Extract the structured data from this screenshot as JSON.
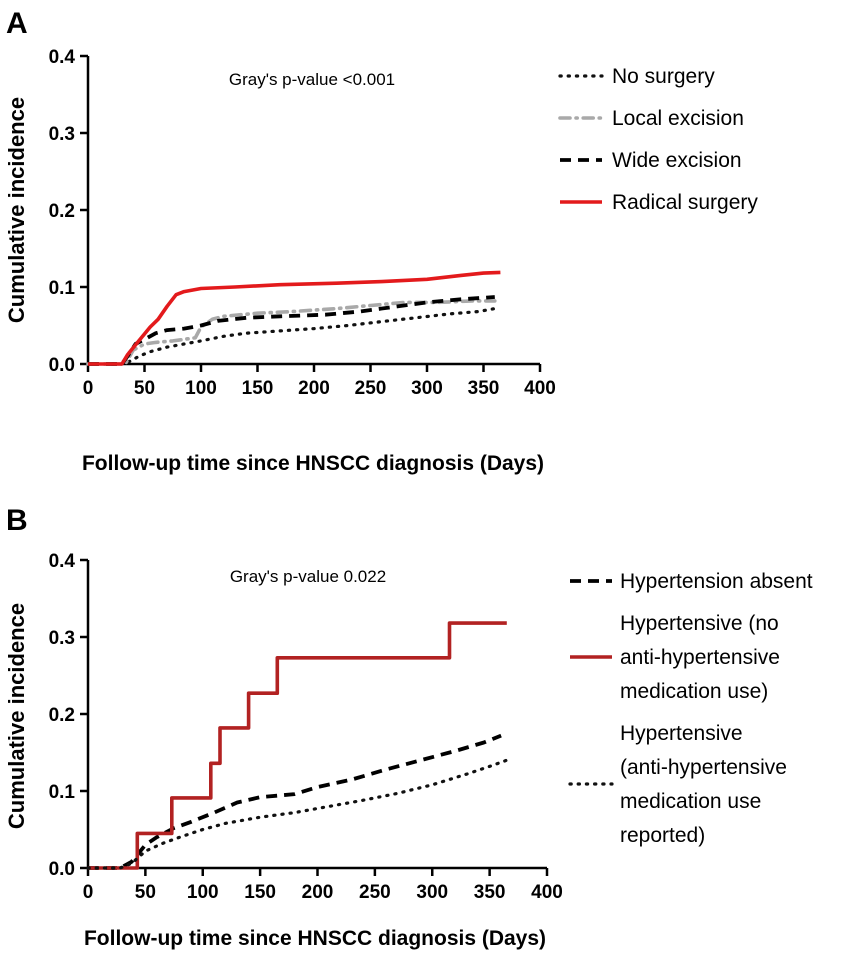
{
  "chart_data": [
    {
      "panel": "A",
      "type": "line",
      "title": "",
      "annotation": "Gray's p-value <0.001",
      "xlabel": "Follow-up time since HNSCC diagnosis (Days)",
      "ylabel": "Cumulative incidence",
      "xlim": [
        0,
        400
      ],
      "ylim": [
        0,
        0.4
      ],
      "xticks": [
        "0",
        "50",
        "100",
        "150",
        "200",
        "250",
        "300",
        "350",
        "400"
      ],
      "yticks": [
        "0.0",
        "0.1",
        "0.2",
        "0.3",
        "0.4"
      ],
      "legend_position": "top-right",
      "series": [
        {
          "name": "No surgery",
          "color": "#111111",
          "style": "dotted",
          "points": [
            [
              0,
              0
            ],
            [
              30,
              0
            ],
            [
              38,
              0.004
            ],
            [
              45,
              0.01
            ],
            [
              55,
              0.016
            ],
            [
              70,
              0.022
            ],
            [
              85,
              0.026
            ],
            [
              100,
              0.03
            ],
            [
              120,
              0.036
            ],
            [
              140,
              0.04
            ],
            [
              170,
              0.043
            ],
            [
              200,
              0.046
            ],
            [
              230,
              0.05
            ],
            [
              260,
              0.055
            ],
            [
              290,
              0.06
            ],
            [
              320,
              0.065
            ],
            [
              345,
              0.068
            ],
            [
              360,
              0.072
            ]
          ]
        },
        {
          "name": "Local excision",
          "color": "#a9a9a9",
          "style": "dash-dot",
          "points": [
            [
              0,
              0
            ],
            [
              33,
              0
            ],
            [
              40,
              0.018
            ],
            [
              50,
              0.026
            ],
            [
              60,
              0.028
            ],
            [
              75,
              0.03
            ],
            [
              95,
              0.034
            ],
            [
              100,
              0.048
            ],
            [
              110,
              0.058
            ],
            [
              120,
              0.062
            ],
            [
              150,
              0.066
            ],
            [
              180,
              0.068
            ],
            [
              220,
              0.072
            ],
            [
              250,
              0.076
            ],
            [
              280,
              0.08
            ],
            [
              310,
              0.08
            ],
            [
              340,
              0.082
            ],
            [
              360,
              0.082
            ]
          ]
        },
        {
          "name": "Wide excision",
          "color": "#000000",
          "style": "dashed",
          "points": [
            [
              0,
              0
            ],
            [
              30,
              0
            ],
            [
              35,
              0.01
            ],
            [
              42,
              0.026
            ],
            [
              50,
              0.032
            ],
            [
              60,
              0.04
            ],
            [
              70,
              0.044
            ],
            [
              85,
              0.046
            ],
            [
              100,
              0.05
            ],
            [
              115,
              0.056
            ],
            [
              140,
              0.06
            ],
            [
              170,
              0.062
            ],
            [
              210,
              0.064
            ],
            [
              240,
              0.068
            ],
            [
              270,
              0.074
            ],
            [
              300,
              0.08
            ],
            [
              330,
              0.084
            ],
            [
              360,
              0.087
            ]
          ]
        },
        {
          "name": "Radical surgery",
          "color": "#e31a1c",
          "style": "solid",
          "points": [
            [
              0,
              0
            ],
            [
              30,
              0
            ],
            [
              35,
              0.012
            ],
            [
              45,
              0.03
            ],
            [
              55,
              0.048
            ],
            [
              62,
              0.058
            ],
            [
              70,
              0.075
            ],
            [
              78,
              0.09
            ],
            [
              85,
              0.094
            ],
            [
              100,
              0.098
            ],
            [
              130,
              0.1
            ],
            [
              170,
              0.103
            ],
            [
              220,
              0.105
            ],
            [
              260,
              0.107
            ],
            [
              300,
              0.11
            ],
            [
              330,
              0.115
            ],
            [
              350,
              0.118
            ],
            [
              365,
              0.119
            ]
          ]
        }
      ]
    },
    {
      "panel": "B",
      "type": "line",
      "title": "",
      "annotation": "Gray's p-value 0.022",
      "xlabel": "Follow-up time since HNSCC diagnosis (Days)",
      "ylabel": "Cumulative incidence",
      "xlim": [
        0,
        400
      ],
      "ylim": [
        0,
        0.4
      ],
      "xticks": [
        "0",
        "50",
        "100",
        "150",
        "200",
        "250",
        "300",
        "350",
        "400"
      ],
      "yticks": [
        "0.0",
        "0.1",
        "0.2",
        "0.3",
        "0.4"
      ],
      "legend_position": "top-right",
      "series": [
        {
          "name": "Hypertension absent",
          "legend_lines": [
            "Hypertension absent"
          ],
          "color": "#000000",
          "style": "dashed",
          "points": [
            [
              0,
              0
            ],
            [
              28,
              0
            ],
            [
              38,
              0.008
            ],
            [
              50,
              0.03
            ],
            [
              60,
              0.04
            ],
            [
              75,
              0.052
            ],
            [
              90,
              0.06
            ],
            [
              110,
              0.072
            ],
            [
              130,
              0.085
            ],
            [
              150,
              0.092
            ],
            [
              180,
              0.096
            ],
            [
              200,
              0.105
            ],
            [
              230,
              0.115
            ],
            [
              260,
              0.128
            ],
            [
              290,
              0.14
            ],
            [
              320,
              0.152
            ],
            [
              345,
              0.163
            ],
            [
              360,
              0.172
            ]
          ]
        },
        {
          "name": "Hypertensive (no anti-hypertensive medication use)",
          "legend_lines": [
            "Hypertensive (no",
            "anti-hypertensive",
            "medication use)"
          ],
          "color": "#b22222",
          "style": "solid-step",
          "points": [
            [
              0,
              0
            ],
            [
              43,
              0
            ],
            [
              43,
              0.045
            ],
            [
              73,
              0.045
            ],
            [
              73,
              0.091
            ],
            [
              107,
              0.091
            ],
            [
              107,
              0.136
            ],
            [
              115,
              0.136
            ],
            [
              115,
              0.182
            ],
            [
              140,
              0.182
            ],
            [
              140,
              0.227
            ],
            [
              165,
              0.227
            ],
            [
              165,
              0.273
            ],
            [
              315,
              0.273
            ],
            [
              315,
              0.318
            ],
            [
              365,
              0.318
            ]
          ]
        },
        {
          "name": "Hypertensive (anti-hypertensive medication use reported)",
          "legend_lines": [
            "Hypertensive",
            "(anti-hypertensive",
            "medication use",
            "reported)"
          ],
          "color": "#111111",
          "style": "dotted",
          "points": [
            [
              0,
              0
            ],
            [
              28,
              0
            ],
            [
              38,
              0.006
            ],
            [
              50,
              0.022
            ],
            [
              65,
              0.032
            ],
            [
              80,
              0.04
            ],
            [
              100,
              0.05
            ],
            [
              120,
              0.058
            ],
            [
              150,
              0.066
            ],
            [
              180,
              0.072
            ],
            [
              210,
              0.08
            ],
            [
              240,
              0.088
            ],
            [
              270,
              0.097
            ],
            [
              300,
              0.108
            ],
            [
              330,
              0.122
            ],
            [
              350,
              0.132
            ],
            [
              365,
              0.14
            ]
          ]
        }
      ]
    }
  ]
}
